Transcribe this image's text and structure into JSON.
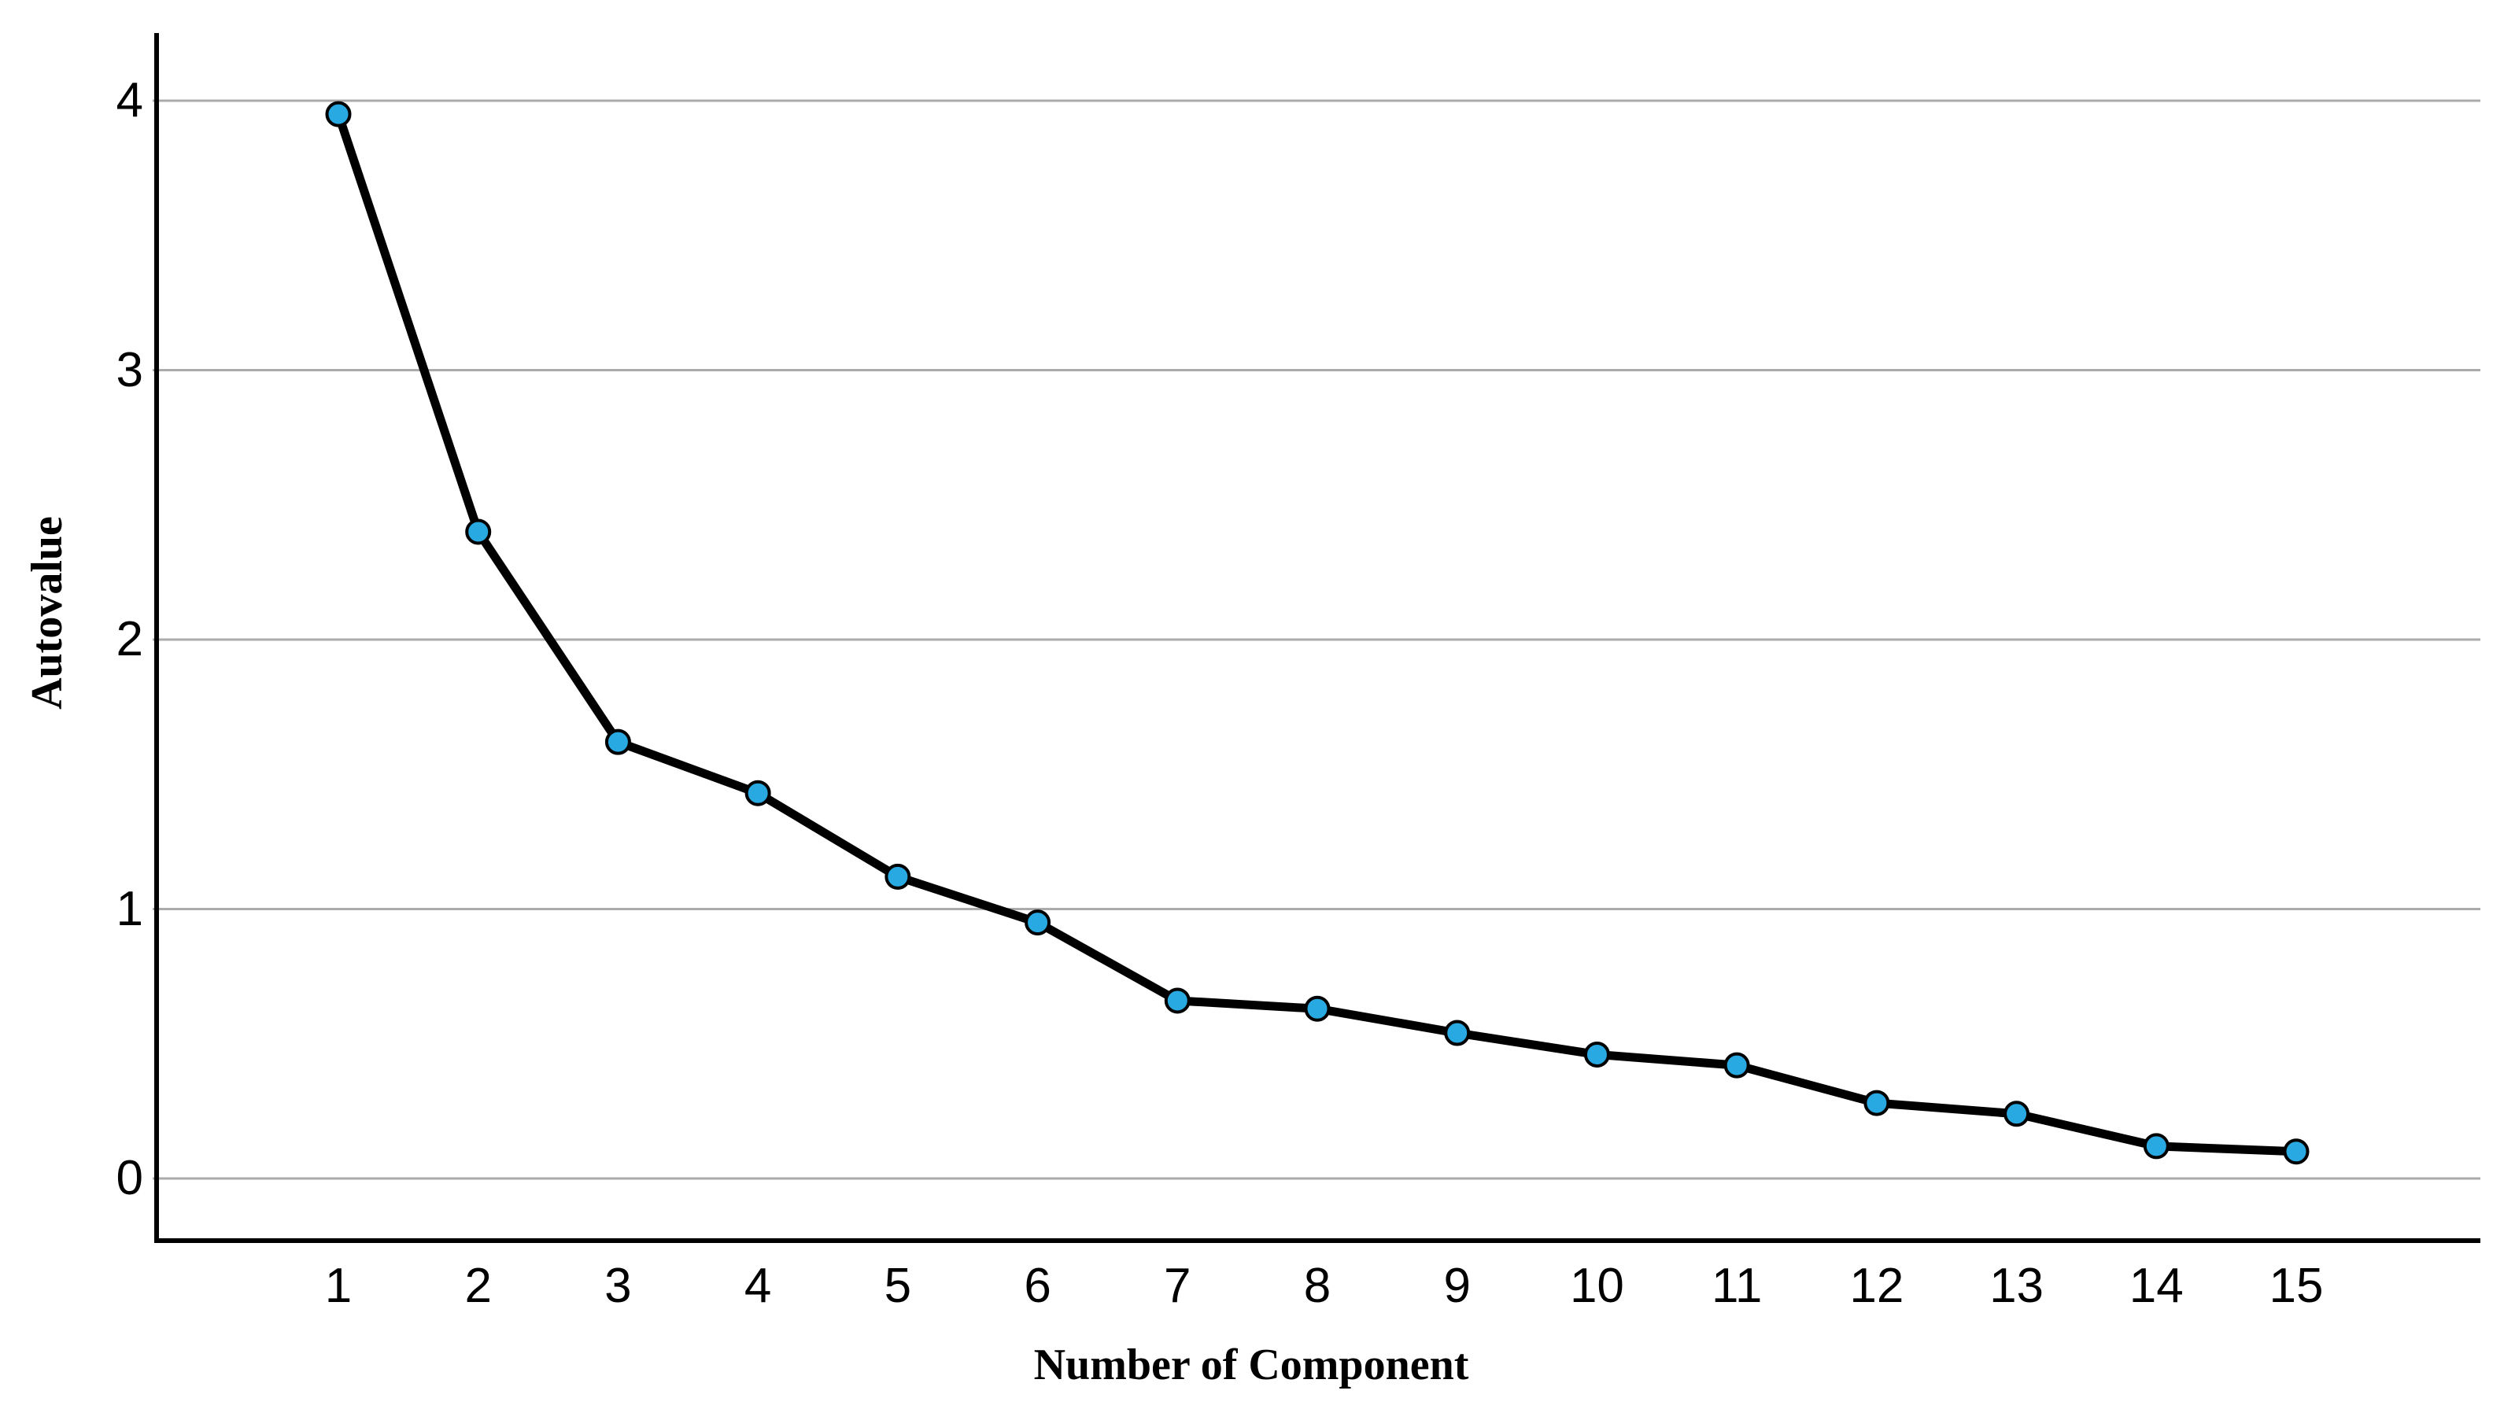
{
  "chart_data": {
    "type": "line",
    "title": "",
    "xlabel": "Number of Component",
    "ylabel": "Autovalue",
    "categories": [
      "1",
      "2",
      "3",
      "4",
      "5",
      "6",
      "7",
      "8",
      "9",
      "10",
      "11",
      "12",
      "13",
      "14",
      "15"
    ],
    "series": [
      {
        "name": "Autovalue",
        "values": [
          3.95,
          2.4,
          1.62,
          1.43,
          1.12,
          0.95,
          0.66,
          0.63,
          0.54,
          0.46,
          0.42,
          0.28,
          0.24,
          0.12,
          0.1
        ]
      }
    ],
    "y_ticks": [
      "0",
      "1",
      "2",
      "3",
      "4"
    ],
    "ylim": [
      -0.23,
      4.25
    ],
    "grid": "horizontal",
    "legend_position": "none",
    "colors": {
      "marker_fill": "#29a9e1",
      "marker_stroke": "#000000",
      "line": "#000000",
      "gridline": "#ababab",
      "axis": "#000000",
      "background": "#ffffff",
      "text": "#000000"
    }
  }
}
